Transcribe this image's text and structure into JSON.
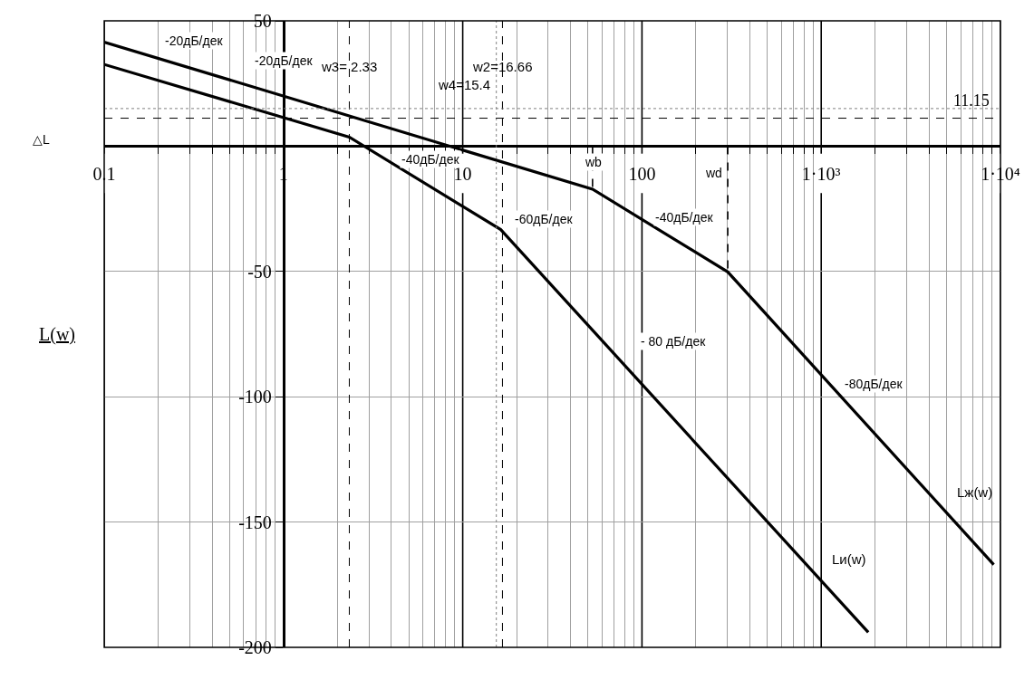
{
  "chart_data": {
    "type": "line",
    "ylabel": "L(w)",
    "log": "x",
    "xlim": [
      0.1,
      10000
    ],
    "ylim": [
      -200,
      50
    ],
    "xticks": [
      0.1,
      1,
      10,
      100,
      {
        "value": 1000,
        "label": "1·10³"
      },
      {
        "value": 10000,
        "label": "1·10⁴"
      }
    ],
    "yticks": [
      50,
      {
        "value": 0,
        "label": null
      },
      -50,
      -100,
      -150,
      -200
    ],
    "grid": true,
    "marker": "none",
    "line_style": "solid",
    "series": [
      {
        "name": "Lж(w)",
        "color": "#000000",
        "x": [
          0.1,
          53,
          301,
          9170
        ],
        "values": [
          41.5,
          -17.2,
          -50.2,
          -167
        ]
      },
      {
        "name": "Lи(w)",
        "color": "#000000",
        "x": [
          0.1,
          2.33,
          16.3,
          1830
        ],
        "values": [
          32.6,
          3.6,
          -33.3,
          -194
        ]
      },
      {
        "type": "line",
        "color": "#000000",
        "line_style": "dashed",
        "x": [
          53,
          53
        ],
        "values": [
          0,
          -17.2
        ]
      },
      {
        "type": "line",
        "color": "#000000",
        "line_style": "dashed",
        "x": [
          301,
          301
        ],
        "values": [
          0,
          -50.2
        ]
      }
    ],
    "ref_lines": [
      {
        "axis": "x",
        "value": 2.33,
        "label": "w3= 2.33",
        "color": "#000000",
        "line_style": "dashed"
      },
      {
        "axis": "x",
        "value": 15.4,
        "label": "w4=15.4",
        "color": "#808080",
        "line_style": "dotted"
      },
      {
        "axis": "x",
        "value": 16.66,
        "label": "w2=16.66",
        "color": "#000000",
        "line_style": "dashed"
      },
      {
        "axis": "y",
        "value": 11.15,
        "label": "11.15",
        "color": "#000000",
        "line_style": "dashed"
      },
      {
        "axis": "y",
        "value": 15,
        "color": "#808080",
        "line_style": "dotted"
      }
    ],
    "annotations": [
      "-20дБ/дек",
      "-20дБ/дек",
      "-40дБ/дек",
      "-60дБ/дек",
      "-40дБ/дек",
      "- 80 дБ/дек",
      "-80дБ/дек",
      "wb",
      "wd",
      "△L"
    ]
  }
}
